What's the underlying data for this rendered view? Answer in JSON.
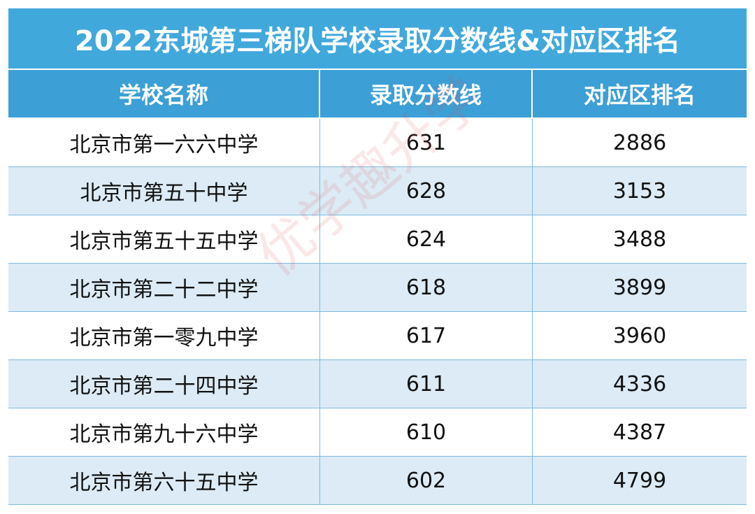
{
  "title": "2022东城第三梯队学校录取分数线&对应区排名",
  "table": {
    "columns": [
      "学校名称",
      "录取分数线",
      "对应区排名"
    ],
    "rows": [
      [
        "北京市第一六六中学",
        631,
        2886
      ],
      [
        "北京市第五十中学",
        628,
        3153
      ],
      [
        "北京市第五十五中学",
        624,
        3488
      ],
      [
        "北京市第二十二中学",
        618,
        3899
      ],
      [
        "北京市第一零九中学",
        617,
        3960
      ],
      [
        "北京市第二十四中学",
        611,
        4336
      ],
      [
        "北京市第九十六中学",
        610,
        4387
      ],
      [
        "北京市第六十五中学",
        602,
        4799
      ]
    ]
  },
  "watermark": "优学趣升学"
}
